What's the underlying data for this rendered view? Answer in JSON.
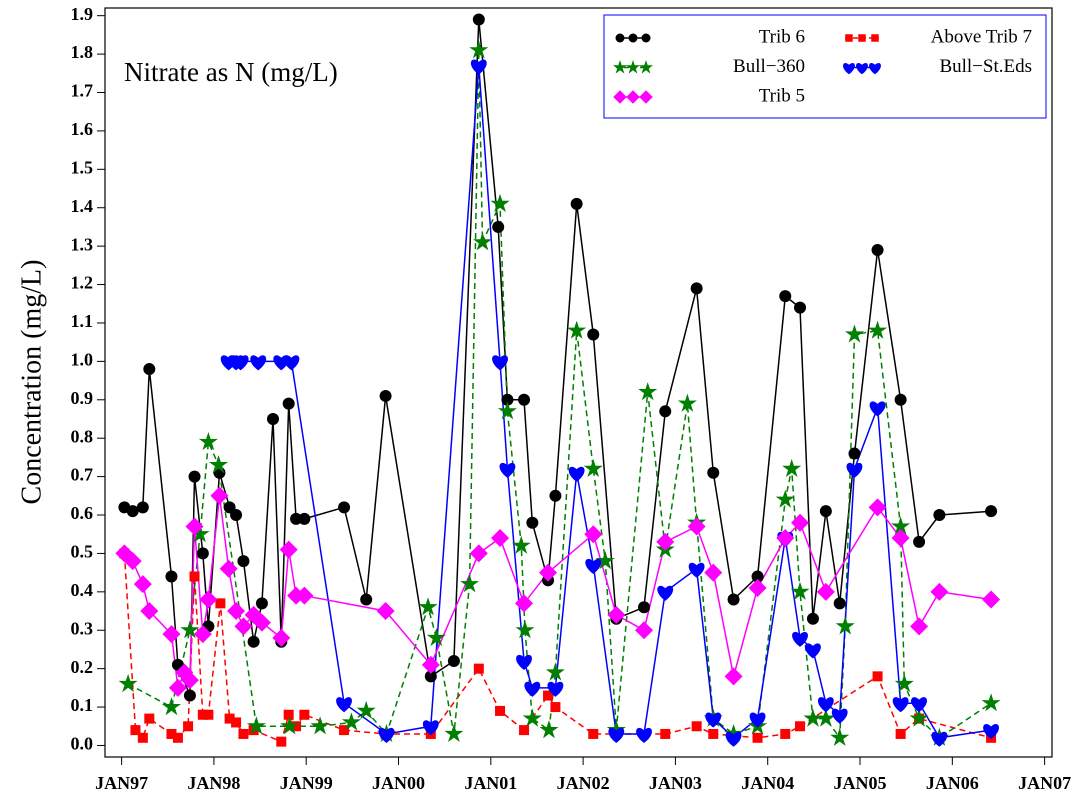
{
  "chart_data": {
    "type": "line",
    "annotation": "Nitrate as N (mg/L)",
    "y_label": "Concentration (mg/L)",
    "xlim": [
      1996.82,
      2007.08
    ],
    "ylim": [
      -0.03,
      1.92
    ],
    "xticks": [
      {
        "value": 1997,
        "label": "JAN97"
      },
      {
        "value": 1998,
        "label": "JAN98"
      },
      {
        "value": 1999,
        "label": "JAN99"
      },
      {
        "value": 2000,
        "label": "JAN00"
      },
      {
        "value": 2001,
        "label": "JAN01"
      },
      {
        "value": 2002,
        "label": "JAN02"
      },
      {
        "value": 2003,
        "label": "JAN03"
      },
      {
        "value": 2004,
        "label": "JAN04"
      },
      {
        "value": 2005,
        "label": "JAN05"
      },
      {
        "value": 2006,
        "label": "JAN06"
      },
      {
        "value": 2007,
        "label": "JAN07"
      }
    ],
    "yticks": [
      {
        "value": 0,
        "label": "0.0"
      },
      0.1,
      0.2,
      0.3,
      0.4,
      0.5,
      0.6,
      0.7,
      0.8,
      0.9,
      {
        "value": 1,
        "label": "1.0"
      },
      1.1,
      1.2,
      1.3,
      1.4,
      1.5,
      1.6,
      1.7,
      1.8,
      1.9
    ],
    "grid": false,
    "legend_position": "upper right",
    "series": [
      {
        "name": "Trib 6",
        "color": "#000000",
        "marker": "circle",
        "dashed": false,
        "x": [
          1997.03,
          1997.12,
          1997.23,
          1997.3,
          1997.54,
          1997.61,
          1997.74,
          1997.79,
          1997.88,
          1997.94,
          1998.06,
          1998.17,
          1998.24,
          1998.32,
          1998.43,
          1998.52,
          1998.64,
          1998.73,
          1998.81,
          1998.89,
          1998.98,
          1999.41,
          1999.65,
          1999.86,
          2000.35,
          2000.6,
          2000.87,
          2001.08,
          2001.18,
          2001.36,
          2001.45,
          2001.62,
          2001.7,
          2001.93,
          2002.11,
          2002.36,
          2002.66,
          2002.89,
          2003.23,
          2003.41,
          2003.63,
          2003.89,
          2004.19,
          2004.35,
          2004.49,
          2004.63,
          2004.78,
          2004.94,
          2005.19,
          2005.44,
          2005.64,
          2005.86,
          2006.42
        ],
        "values": [
          0.62,
          0.61,
          0.62,
          0.98,
          0.44,
          0.21,
          0.13,
          0.7,
          0.5,
          0.31,
          0.71,
          0.62,
          0.6,
          0.48,
          0.27,
          0.37,
          0.85,
          0.27,
          0.89,
          0.59,
          0.59,
          0.62,
          0.38,
          0.91,
          0.18,
          0.22,
          1.89,
          1.35,
          0.9,
          0.9,
          0.58,
          0.43,
          0.65,
          1.41,
          1.07,
          0.33,
          0.36,
          0.87,
          1.19,
          0.71,
          0.38,
          0.44,
          1.17,
          1.14,
          0.33,
          0.61,
          0.37,
          0.76,
          1.29,
          0.9,
          0.53,
          0.6,
          0.61
        ]
      },
      {
        "name": "Above Trib 7",
        "color": "#ff0000",
        "marker": "square",
        "dashed": true,
        "x": [
          1997.03,
          1997.15,
          1997.23,
          1997.3,
          1997.54,
          1997.61,
          1997.72,
          1997.79,
          1997.88,
          1997.94,
          1998.07,
          1998.17,
          1998.24,
          1998.32,
          1998.43,
          1998.73,
          1998.81,
          1998.89,
          1998.98,
          1999.41,
          1999.86,
          2000.35,
          2000.87,
          2001.1,
          2001.36,
          2001.62,
          2001.7,
          2002.11,
          2002.89,
          2003.23,
          2003.41,
          2003.89,
          2004.19,
          2004.35,
          2005.19,
          2005.44,
          2005.64,
          2006.42
        ],
        "values": [
          0.5,
          0.04,
          0.02,
          0.07,
          0.03,
          0.02,
          0.05,
          0.44,
          0.08,
          0.08,
          0.37,
          0.07,
          0.06,
          0.03,
          0.04,
          0.01,
          0.08,
          0.05,
          0.08,
          0.04,
          0.03,
          0.03,
          0.2,
          0.09,
          0.04,
          0.13,
          0.1,
          0.03,
          0.03,
          0.05,
          0.03,
          0.02,
          0.03,
          0.05,
          0.18,
          0.03,
          0.07,
          0.02
        ]
      },
      {
        "name": "Bull−360",
        "color": "#007f00",
        "marker": "star",
        "dashed": true,
        "x": [
          1997.07,
          1997.54,
          1997.74,
          1997.85,
          1997.94,
          1998.05,
          1998.46,
          1998.82,
          1999.15,
          1999.49,
          1999.65,
          1999.87,
          2000.32,
          2000.41,
          2000.6,
          2000.77,
          2000.87,
          2000.91,
          2001.1,
          2001.18,
          2001.33,
          2001.37,
          2001.45,
          2001.63,
          2001.7,
          2001.93,
          2002.11,
          2002.24,
          2002.36,
          2002.7,
          2002.89,
          2003.13,
          2003.23,
          2003.41,
          2003.63,
          2003.89,
          2004.19,
          2004.26,
          2004.35,
          2004.49,
          2004.63,
          2004.78,
          2004.84,
          2004.94,
          2005.19,
          2005.44,
          2005.48,
          2005.64,
          2005.86,
          2006.42
        ],
        "values": [
          0.16,
          0.1,
          0.3,
          0.55,
          0.79,
          0.73,
          0.05,
          0.05,
          0.05,
          0.06,
          0.09,
          0.03,
          0.36,
          0.28,
          0.03,
          0.42,
          1.81,
          1.31,
          1.41,
          0.87,
          0.52,
          0.3,
          0.07,
          0.04,
          0.19,
          1.08,
          0.72,
          0.48,
          0.04,
          0.92,
          0.51,
          0.89,
          0.58,
          0.07,
          0.03,
          0.05,
          0.64,
          0.72,
          0.4,
          0.07,
          0.07,
          0.02,
          0.31,
          1.07,
          1.08,
          0.57,
          0.16,
          0.07,
          0.02,
          0.11
        ]
      },
      {
        "name": "Bull−St.Eds",
        "color": "#0000ff",
        "marker": "heart",
        "dashed": false,
        "x": [
          1998.16,
          1998.24,
          1998.29,
          1998.48,
          1998.73,
          1998.84,
          1999.41,
          1999.87,
          2000.35,
          2000.87,
          2001.1,
          2001.18,
          2001.36,
          2001.45,
          2001.7,
          2001.93,
          2002.11,
          2002.36,
          2002.66,
          2002.89,
          2003.23,
          2003.41,
          2003.63,
          2003.89,
          2004.19,
          2004.35,
          2004.49,
          2004.63,
          2004.78,
          2004.94,
          2005.19,
          2005.44,
          2005.64,
          2005.86,
          2006.42
        ],
        "values": [
          1.0,
          1.0,
          1.0,
          1.0,
          1.0,
          1.0,
          0.11,
          0.03,
          0.05,
          1.77,
          1.0,
          0.72,
          0.22,
          0.15,
          0.15,
          0.71,
          0.47,
          0.03,
          0.03,
          0.4,
          0.46,
          0.07,
          0.02,
          0.07,
          0.54,
          0.28,
          0.25,
          0.11,
          0.08,
          0.72,
          0.88,
          0.11,
          0.11,
          0.02,
          0.04
        ]
      },
      {
        "name": "Trib 5",
        "color": "#ff00ff",
        "marker": "diamond",
        "dashed": false,
        "x": [
          1997.03,
          1997.12,
          1997.23,
          1997.3,
          1997.54,
          1997.61,
          1997.68,
          1997.74,
          1997.79,
          1997.88,
          1997.94,
          1998.06,
          1998.16,
          1998.24,
          1998.32,
          1998.43,
          1998.52,
          1998.73,
          1998.81,
          1998.89,
          1998.98,
          1999.86,
          2000.35,
          2000.87,
          2001.1,
          2001.36,
          2001.62,
          2002.11,
          2002.36,
          2002.66,
          2002.89,
          2003.23,
          2003.41,
          2003.63,
          2003.89,
          2004.19,
          2004.35,
          2004.63,
          2005.19,
          2005.44,
          2005.64,
          2005.86,
          2006.42
        ],
        "values": [
          0.5,
          0.48,
          0.42,
          0.35,
          0.29,
          0.15,
          0.19,
          0.17,
          0.57,
          0.29,
          0.38,
          0.65,
          0.46,
          0.35,
          0.31,
          0.34,
          0.32,
          0.28,
          0.51,
          0.39,
          0.39,
          0.35,
          0.21,
          0.5,
          0.54,
          0.37,
          0.45,
          0.55,
          0.34,
          0.3,
          0.53,
          0.57,
          0.45,
          0.18,
          0.41,
          0.54,
          0.58,
          0.4,
          0.62,
          0.54,
          0.31,
          0.4,
          0.38
        ]
      }
    ]
  }
}
